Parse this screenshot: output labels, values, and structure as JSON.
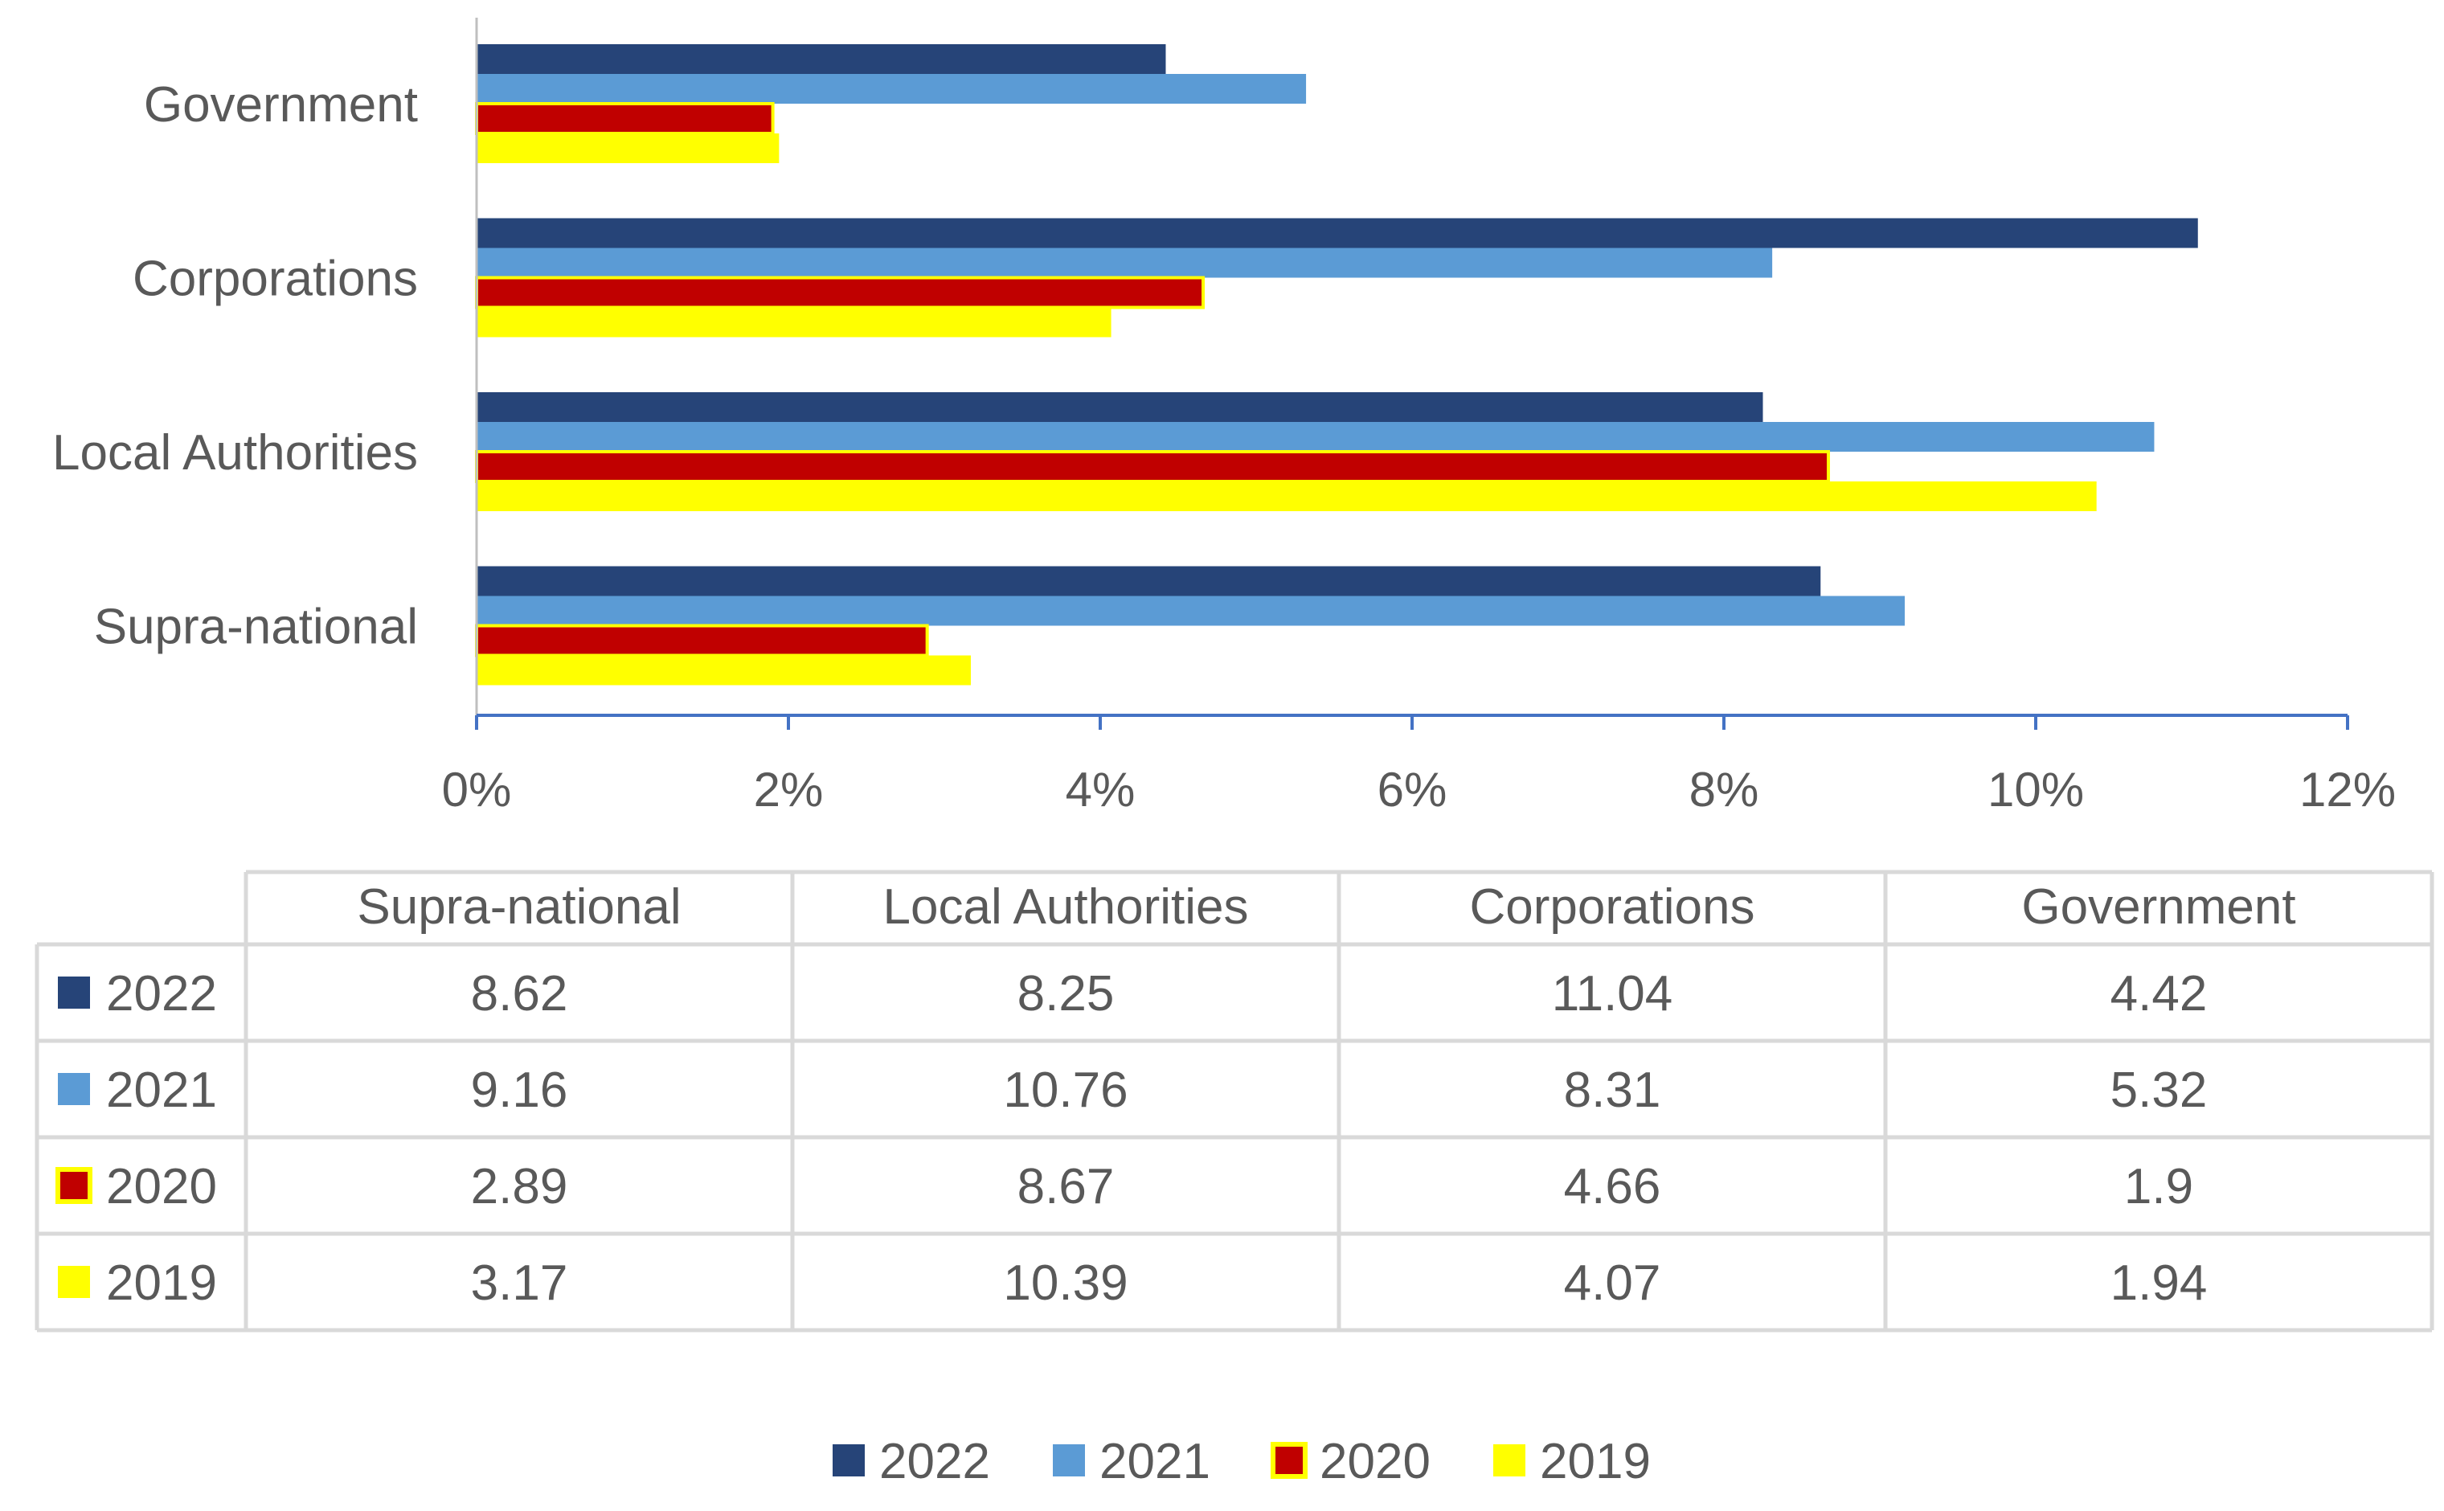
{
  "chart_data": {
    "type": "bar",
    "orientation": "horizontal",
    "categories": [
      "Supra-national",
      "Local Authorities",
      "Corporations",
      "Government"
    ],
    "series": [
      {
        "name": "2022",
        "color": "#264478",
        "values": [
          8.62,
          8.25,
          11.04,
          4.42
        ]
      },
      {
        "name": "2021",
        "color": "#5B9BD5",
        "values": [
          9.16,
          10.76,
          8.31,
          5.32
        ]
      },
      {
        "name": "2020",
        "color": "#C00000",
        "border_color": "#FFFF00",
        "values": [
          2.89,
          8.67,
          4.66,
          1.9
        ]
      },
      {
        "name": "2019",
        "color": "#FFFF00",
        "values": [
          3.17,
          10.39,
          4.07,
          1.94
        ]
      }
    ],
    "title": "",
    "xlabel": "",
    "ylabel": "",
    "xlim": [
      0,
      12
    ],
    "x_ticks": [
      0,
      2,
      4,
      6,
      8,
      10,
      12
    ],
    "x_tick_labels": [
      "0%",
      "2%",
      "4%",
      "6%",
      "8%",
      "10%",
      "12%"
    ],
    "grid": false,
    "legend": "bottom",
    "data_table": true
  },
  "colors": {
    "axis": "#4472C4",
    "text": "#595959",
    "table_border": "#D9D9D9"
  }
}
